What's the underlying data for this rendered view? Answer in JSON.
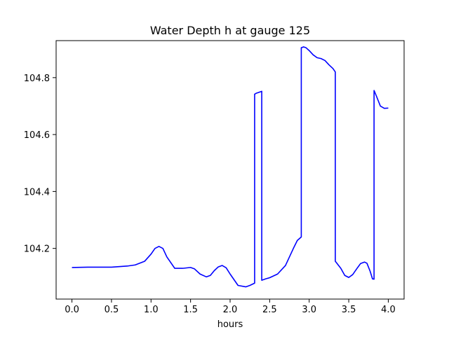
{
  "chart_data": {
    "type": "line",
    "title": "Water Depth h at gauge 125",
    "xlabel": "hours",
    "ylabel": "",
    "xlim": [
      -0.2,
      4.2
    ],
    "ylim": [
      104.022,
      104.93
    ],
    "x_ticks": [
      0.0,
      0.5,
      1.0,
      1.5,
      2.0,
      2.5,
      3.0,
      3.5,
      4.0
    ],
    "x_tick_labels": [
      "0.0",
      "0.5",
      "1.0",
      "1.5",
      "2.0",
      "2.5",
      "3.0",
      "3.5",
      "4.0"
    ],
    "y_ticks": [
      104.2,
      104.4,
      104.6,
      104.8
    ],
    "y_tick_labels": [
      "104.2",
      "104.4",
      "104.6",
      "104.8"
    ],
    "grid": false,
    "series": [
      {
        "color": "#0000ff",
        "x": [
          0.0,
          0.2,
          0.5,
          0.7,
          0.8,
          0.92,
          1.0,
          1.05,
          1.1,
          1.15,
          1.2,
          1.3,
          1.4,
          1.5,
          1.55,
          1.62,
          1.7,
          1.75,
          1.8,
          1.85,
          1.9,
          1.95,
          2.0,
          2.05,
          2.1,
          2.2,
          2.25,
          2.31,
          2.31,
          2.33,
          2.36,
          2.4,
          2.4,
          2.45,
          2.5,
          2.6,
          2.7,
          2.8,
          2.85,
          2.9,
          2.9,
          2.93,
          2.96,
          3.0,
          3.05,
          3.1,
          3.15,
          3.2,
          3.25,
          3.3,
          3.33,
          3.33,
          3.4,
          3.45,
          3.5,
          3.55,
          3.6,
          3.65,
          3.7,
          3.73,
          3.77,
          3.8,
          3.82,
          3.82,
          3.85,
          3.9,
          3.95,
          4.0
        ],
        "y": [
          104.133,
          104.134,
          104.134,
          104.138,
          104.142,
          104.155,
          104.18,
          104.2,
          104.207,
          104.2,
          104.17,
          104.13,
          104.13,
          104.133,
          104.128,
          104.11,
          104.1,
          104.105,
          104.122,
          104.135,
          104.14,
          104.132,
          104.11,
          104.09,
          104.07,
          104.065,
          104.07,
          104.078,
          104.742,
          104.745,
          104.748,
          104.752,
          104.088,
          104.093,
          104.097,
          104.11,
          104.14,
          104.2,
          104.228,
          104.24,
          104.905,
          104.908,
          104.905,
          104.895,
          104.88,
          104.87,
          104.867,
          104.86,
          104.845,
          104.832,
          104.82,
          104.155,
          104.13,
          104.105,
          104.098,
          104.108,
          104.128,
          104.147,
          104.152,
          104.148,
          104.12,
          104.093,
          104.092,
          104.755,
          104.735,
          104.7,
          104.692,
          104.693
        ]
      }
    ]
  }
}
